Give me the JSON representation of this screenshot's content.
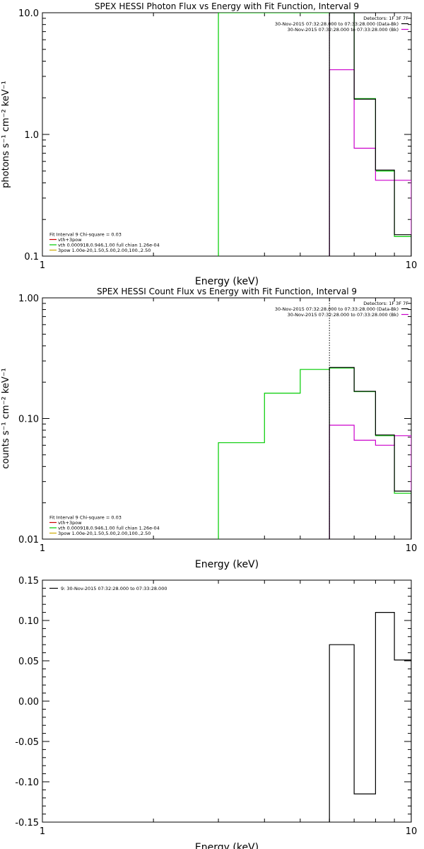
{
  "chart_data": [
    {
      "type": "line",
      "title": "SPEX HESSI Photon Flux vs Energy with Fit Function, Interval 9",
      "xlabel": "Energy (keV)",
      "ylabel": "photons s⁻¹ cm⁻² keV⁻¹",
      "x_scale": "log",
      "y_scale": "log",
      "xlim": [
        1,
        10
      ],
      "ylim": [
        0.1,
        10
      ],
      "x_ticks": [
        1,
        10
      ],
      "x_tick_labels": [
        "1",
        "10"
      ],
      "y_ticks": [
        0.1,
        1,
        10
      ],
      "y_tick_labels": [
        "0.1",
        "1.0",
        "10.0"
      ],
      "legend_top": {
        "placement": "top-right",
        "heading": "Detectors: 1F 3F 7F",
        "entries": [
          {
            "label": "30-Nov-2015 07:32:28.000 to 07:33:28.000 (Data-Bk)",
            "color": "#000000"
          },
          {
            "label": "30-Nov-2015 07:32:28.000 to 07:33:28.000 (Bk)",
            "color": "#cc00cc"
          }
        ]
      },
      "legend_bottom": {
        "placement": "bottom-left",
        "heading": "Fit Interval 9   Chi-square = 0.03",
        "entries": [
          {
            "label": "vth+3pow",
            "color": "#cc0000"
          },
          {
            "label": "vth 0.000918,0.946,1.00  full chian 1.26e-04",
            "color": "#00cc00"
          },
          {
            "label": "3pow 1.00e-20,1.50,5.00,2.00,100.,2.50",
            "color": "#ccaa00"
          }
        ]
      },
      "series": [
        {
          "name": "30-Nov-2015 07:32:28.000 to 07:33:28.000 (Data-Bk)",
          "color": "#000000",
          "edges": [
            6,
            7,
            8,
            9,
            10
          ],
          "values": [
            10.2,
            1.95,
            0.51,
            0.15
          ]
        },
        {
          "name": "30-Nov-2015 07:32:28.000 to 07:33:28.000 (Bk)",
          "color": "#cc00cc",
          "edges": [
            6,
            7,
            8,
            9,
            10
          ],
          "values": [
            3.4,
            0.77,
            0.42,
            0.42
          ]
        },
        {
          "name": "vth 0.000918,0.946,1.00  full chian 1.26e-04",
          "color": "#00cc00",
          "edges": [
            3,
            6,
            7,
            8,
            9,
            10
          ],
          "values": [
            10.5,
            10.5,
            1.97,
            0.5,
            0.145
          ]
        }
      ],
      "vlines": [
        {
          "x": 6,
          "color": "#cc00cc",
          "style": "dotted"
        }
      ]
    },
    {
      "type": "line",
      "title": "SPEX HESSI Count Flux vs Energy with Fit Function, Interval 9",
      "xlabel": "Energy (keV)",
      "ylabel": "counts s⁻¹ cm⁻² keV⁻¹",
      "x_scale": "log",
      "y_scale": "log",
      "xlim": [
        1,
        10
      ],
      "ylim": [
        0.01,
        1
      ],
      "x_ticks": [
        1,
        10
      ],
      "x_tick_labels": [
        "1",
        "10"
      ],
      "y_ticks": [
        0.01,
        0.1,
        1
      ],
      "y_tick_labels": [
        "0.01",
        "0.10",
        "1.00"
      ],
      "legend_top": {
        "placement": "top-right",
        "heading": "Detectors: 1F 3F 7F",
        "entries": [
          {
            "label": "30-Nov-2015 07:32:28.000 to 07:33:28.000 (Data-Bk)",
            "color": "#000000"
          },
          {
            "label": "30-Nov-2015 07:32:28.000 to 07:33:28.000 (Bk)",
            "color": "#cc00cc"
          }
        ]
      },
      "legend_bottom": {
        "placement": "bottom-left",
        "heading": "Fit Interval 9   Chi-square = 0.03",
        "entries": [
          {
            "label": "vth+3pow",
            "color": "#cc0000"
          },
          {
            "label": "vth 0.000918,0.946,1.00  full chian 1.26e-04",
            "color": "#00cc00"
          },
          {
            "label": "3pow 1.00e-20,1.50,5.00,2.00,100.,2.50",
            "color": "#ccaa00"
          }
        ]
      },
      "series": [
        {
          "name": "30-Nov-2015 07:32:28.000 to 07:33:28.000 (Data-Bk)",
          "color": "#000000",
          "edges": [
            6,
            7,
            8,
            9,
            10
          ],
          "values": [
            0.265,
            0.168,
            0.073,
            0.025
          ]
        },
        {
          "name": "30-Nov-2015 07:32:28.000 to 07:33:28.000 (Bk)",
          "color": "#cc00cc",
          "edges": [
            6,
            7,
            8,
            9,
            10
          ],
          "values": [
            0.088,
            0.066,
            0.06,
            0.072
          ]
        },
        {
          "name": "vth 0.000918,0.946,1.00  full chian 1.26e-04",
          "color": "#00cc00",
          "edges": [
            3,
            4,
            5,
            6,
            7,
            8,
            9,
            10
          ],
          "values": [
            0.063,
            0.162,
            0.255,
            0.262,
            0.167,
            0.072,
            0.024
          ]
        }
      ],
      "vlines": [
        {
          "x": 6,
          "color": "#000000",
          "style": "dotted"
        }
      ]
    },
    {
      "type": "line",
      "title": "",
      "xlabel": "Energy (keV)",
      "ylabel": "",
      "x_scale": "log",
      "y_scale": "linear",
      "xlim": [
        1,
        10
      ],
      "ylim": [
        -0.15,
        0.15
      ],
      "x_ticks": [
        1,
        10
      ],
      "x_tick_labels": [
        "1",
        "10"
      ],
      "y_ticks": [
        -0.15,
        -0.1,
        -0.05,
        0,
        0.05,
        0.1,
        0.15
      ],
      "y_tick_labels": [
        "-0.15",
        "-0.10",
        "-0.05",
        "0.00",
        "0.05",
        "0.10",
        "0.15"
      ],
      "legend_top": {
        "placement": "top-left",
        "heading": "",
        "entries": [
          {
            "label": "9: 30-Nov-2015 07:32:28.000 to 07:33:28.000",
            "color": "#000000"
          }
        ]
      },
      "series": [
        {
          "name": "9: 30-Nov-2015 07:32:28.000 to 07:33:28.000",
          "color": "#000000",
          "edges": [
            6,
            7,
            8,
            9,
            10
          ],
          "values": [
            0.07,
            -0.115,
            0.11,
            0.051
          ]
        }
      ],
      "vlines": []
    }
  ]
}
